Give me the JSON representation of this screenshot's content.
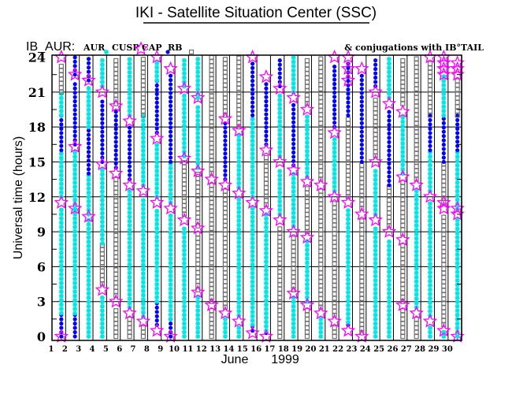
{
  "chart_data": {
    "type": "scatter",
    "title": "IKI - Satellite Situation Center (SSC)",
    "panel_label": "IB_AUR:",
    "legend": [
      {
        "label": "AUR",
        "marker": "asterisk",
        "color": "#00e5e5"
      },
      {
        "label": "CUSP",
        "marker": "star",
        "color": "#ff00ff"
      },
      {
        "label": "CAP",
        "marker": "dot",
        "color": "#0000ff"
      },
      {
        "label": "RB",
        "marker": "square",
        "color": "#707070"
      }
    ],
    "note": "& conjugations with IB°TAIL",
    "ylabel": "Universal time (hours)",
    "xlabel_month": "June",
    "xlabel_year": "1999",
    "ylim": [
      0,
      24
    ],
    "yticks": [
      0,
      3,
      6,
      9,
      12,
      15,
      18,
      21,
      24
    ],
    "xticks": [
      1,
      2,
      3,
      4,
      5,
      6,
      7,
      8,
      9,
      10,
      11,
      12,
      13,
      14,
      15,
      16,
      17,
      18,
      19,
      20,
      21,
      22,
      23,
      24,
      25,
      26,
      27,
      28,
      29,
      30
    ],
    "grid": true,
    "days": [
      {
        "d": 2,
        "seg": [
          [
            0,
            2,
            "cap"
          ],
          [
            2,
            11,
            "aur"
          ],
          [
            12,
            16,
            "aur"
          ],
          [
            16,
            19,
            "cap"
          ],
          [
            19,
            21,
            "aur"
          ],
          [
            21,
            23.5,
            "rb"
          ]
        ],
        "cusp": [
          24,
          11.5,
          0
        ]
      },
      {
        "d": 3,
        "seg": [
          [
            0,
            2,
            "cap"
          ],
          [
            2,
            11,
            "aur"
          ],
          [
            11,
            16,
            "aur"
          ],
          [
            16.5,
            22,
            "cap"
          ],
          [
            22.5,
            24,
            "cap"
          ]
        ],
        "cusp": [
          22.5,
          16.3,
          11
        ]
      },
      {
        "d": 4,
        "seg": [
          [
            0,
            10,
            "aur"
          ],
          [
            10.5,
            14,
            "aur"
          ],
          [
            14,
            18,
            "cap"
          ],
          [
            18,
            21.5,
            "aur"
          ],
          [
            22,
            24,
            "cap"
          ]
        ],
        "cusp": [
          22,
          10.3
        ]
      },
      {
        "d": 5,
        "seg": [
          [
            0,
            3.5,
            "aur"
          ],
          [
            4.5,
            8,
            "rb"
          ],
          [
            8,
            14.5,
            "aur"
          ],
          [
            15,
            20.5,
            "cap"
          ],
          [
            21.5,
            24,
            "aur"
          ]
        ],
        "cusp": [
          21,
          14.8,
          4
        ]
      },
      {
        "d": 6,
        "seg": [
          [
            0,
            2.5,
            "rb"
          ],
          [
            3.5,
            13.5,
            "rb"
          ],
          [
            14.5,
            19.5,
            "cap"
          ],
          [
            20,
            24,
            "rb"
          ]
        ],
        "cusp": [
          19.8,
          14,
          3
        ]
      },
      {
        "d": 7,
        "seg": [
          [
            0,
            1.5,
            "rb"
          ],
          [
            2.5,
            12.5,
            "aur"
          ],
          [
            13.5,
            18,
            "cap"
          ],
          [
            19,
            24,
            "aur"
          ]
        ],
        "cusp": [
          18.5,
          13,
          2
        ]
      },
      {
        "d": 8,
        "seg": [
          [
            0,
            1,
            "rb"
          ],
          [
            1.7,
            12,
            "aur"
          ],
          [
            13,
            19,
            "aur"
          ],
          [
            19,
            24,
            "rb"
          ]
        ],
        "cusp": [
          12.5,
          1.3
        ]
      },
      {
        "d": 9,
        "seg": [
          [
            1,
            3,
            "cap"
          ],
          [
            3,
            11,
            "aur"
          ],
          [
            12,
            16.5,
            "aur"
          ],
          [
            17.5,
            22,
            "cap"
          ],
          [
            22,
            23.5,
            "aur"
          ]
        ],
        "cusp": [
          24,
          17,
          11.5,
          0.5
        ]
      },
      {
        "d": 10,
        "seg": [
          [
            0,
            1.5,
            "cap"
          ],
          [
            1.5,
            10.5,
            "aur"
          ],
          [
            11.5,
            15,
            "aur"
          ],
          [
            15,
            22.5,
            "cap"
          ]
        ],
        "cusp": [
          23,
          11,
          0
        ]
      },
      {
        "d": 11,
        "seg": [
          [
            0,
            9.5,
            "aur"
          ],
          [
            10.5,
            15,
            "rb"
          ],
          [
            15.5,
            21,
            "aur"
          ],
          [
            21.5,
            24,
            "aur"
          ]
        ],
        "cusp": [
          21.3,
          15.3,
          10
        ]
      },
      {
        "d": 12,
        "seg": [
          [
            0,
            3.5,
            "aur"
          ],
          [
            4,
            9,
            "rb"
          ],
          [
            9.5,
            14,
            "rb"
          ],
          [
            14.5,
            20,
            "aur"
          ],
          [
            20.5,
            24,
            "aur"
          ]
        ],
        "cusp": [
          20.5,
          14.2,
          9.3,
          3.8
        ]
      },
      {
        "d": 13,
        "seg": [
          [
            0,
            2.5,
            "rb"
          ],
          [
            3,
            13,
            "rb"
          ],
          [
            14,
            24,
            "rb"
          ]
        ],
        "cusp": [
          13.5,
          2.7
        ]
      },
      {
        "d": 14,
        "seg": [
          [
            0,
            1.5,
            "aur"
          ],
          [
            2.5,
            12.5,
            "rb"
          ],
          [
            13.5,
            18.5,
            "cap"
          ],
          [
            19,
            24,
            "rb"
          ]
        ],
        "cusp": [
          18.7,
          13,
          2
        ]
      },
      {
        "d": 15,
        "seg": [
          [
            0,
            1,
            "aur"
          ],
          [
            1.8,
            12,
            "aur"
          ],
          [
            12.8,
            17.5,
            "aur"
          ],
          [
            18,
            24,
            "rb"
          ]
        ],
        "cusp": [
          17.7,
          12.3,
          1.3
        ]
      },
      {
        "d": 16,
        "seg": [
          [
            0.5,
            1,
            "cap"
          ],
          [
            1,
            11,
            "aur"
          ],
          [
            12,
            19,
            "aur"
          ],
          [
            19,
            23.5,
            "cap"
          ]
        ],
        "cusp": [
          24,
          11.5,
          0.3
        ]
      },
      {
        "d": 17,
        "seg": [
          [
            0.3,
            0.5,
            "cap"
          ],
          [
            0.5,
            10.5,
            "aur"
          ],
          [
            11.3,
            15.5,
            "rb"
          ],
          [
            16.5,
            22,
            "cap"
          ]
        ],
        "cusp": [
          22.3,
          16,
          10.8,
          0
        ]
      },
      {
        "d": 18,
        "seg": [
          [
            0,
            9.5,
            "rb"
          ],
          [
            10.5,
            14.5,
            "aur"
          ],
          [
            15.5,
            21,
            "aur"
          ],
          [
            21.5,
            24,
            "cap"
          ]
        ],
        "cusp": [
          21.3,
          15,
          10
        ]
      },
      {
        "d": 19,
        "seg": [
          [
            0,
            3.5,
            "aur"
          ],
          [
            4,
            8.7,
            "rb"
          ],
          [
            9.5,
            14,
            "aur"
          ],
          [
            14.7,
            20,
            "cap"
          ],
          [
            21,
            24,
            "aur"
          ]
        ],
        "cusp": [
          20.5,
          14.3,
          9,
          3.7
        ]
      },
      {
        "d": 20,
        "seg": [
          [
            0,
            2.5,
            "rb"
          ],
          [
            3,
            8.3,
            "aur"
          ],
          [
            9,
            13,
            "rb"
          ],
          [
            13.7,
            19,
            "aur"
          ],
          [
            20,
            24,
            "rb"
          ]
        ],
        "cusp": [
          19.5,
          13.3,
          8.5,
          2.7
        ]
      },
      {
        "d": 21,
        "seg": [
          [
            0,
            1.5,
            "aur"
          ],
          [
            2.5,
            12.5,
            "rb"
          ],
          [
            13.5,
            24,
            "rb"
          ]
        ],
        "cusp": [
          13,
          2
        ]
      },
      {
        "d": 22,
        "seg": [
          [
            0,
            1,
            "rb"
          ],
          [
            1.8,
            11.5,
            "rb"
          ],
          [
            12.5,
            17,
            "aur"
          ],
          [
            18,
            23.5,
            "cap"
          ]
        ],
        "cusp": [
          24,
          17.5,
          12,
          1.3
        ]
      },
      {
        "d": 23,
        "seg": [
          [
            1,
            1.2,
            "cap"
          ],
          [
            1.2,
            11,
            "aur"
          ],
          [
            12,
            19,
            "rb"
          ],
          [
            19,
            23.5,
            "cap"
          ]
        ],
        "cusp": [
          24,
          23,
          22,
          11.5,
          0.5
        ]
      },
      {
        "d": 24,
        "seg": [
          [
            0.3,
            10,
            "rb"
          ],
          [
            11,
            15,
            "rb"
          ],
          [
            15,
            22.5,
            "cap"
          ]
        ],
        "cusp": [
          23,
          10.5,
          0
        ]
      },
      {
        "d": 25,
        "seg": [
          [
            0,
            9.5,
            "aur"
          ],
          [
            10.5,
            14.5,
            "aur"
          ],
          [
            15.5,
            20.5,
            "rb"
          ],
          [
            21.5,
            24,
            "cap"
          ]
        ],
        "cusp": [
          21,
          15,
          10
        ]
      },
      {
        "d": 26,
        "seg": [
          [
            0,
            8.5,
            "aur"
          ],
          [
            9.5,
            13,
            "rb"
          ],
          [
            13,
            19.5,
            "cap"
          ],
          [
            20.5,
            24,
            "aur"
          ]
        ],
        "cusp": [
          20,
          9
        ]
      },
      {
        "d": 27,
        "seg": [
          [
            0,
            2.3,
            "rb"
          ],
          [
            3,
            8,
            "rb"
          ],
          [
            8.8,
            13.3,
            "rb"
          ],
          [
            14,
            19,
            "aur"
          ],
          [
            20,
            24,
            "rb"
          ]
        ],
        "cusp": [
          19.3,
          13.7,
          8.3,
          2.7
        ]
      },
      {
        "d": 28,
        "seg": [
          [
            0,
            1.5,
            "rb"
          ],
          [
            2.5,
            12.5,
            "aur"
          ],
          [
            13.5,
            24,
            "rb"
          ]
        ],
        "cusp": [
          13,
          2
        ]
      },
      {
        "d": 29,
        "seg": [
          [
            0,
            1,
            "aur"
          ],
          [
            1.8,
            11.5,
            "aur"
          ],
          [
            12.5,
            16,
            "aur"
          ],
          [
            16,
            19,
            "cap"
          ],
          [
            19,
            23.5,
            "rb"
          ]
        ],
        "cusp": [
          24,
          12,
          1.3
        ]
      },
      {
        "d": 30,
        "seg": [
          [
            0,
            0.5,
            "aur"
          ],
          [
            1,
            10.5,
            "rb"
          ],
          [
            11.5,
            15,
            "rb"
          ],
          [
            15,
            19,
            "cap"
          ],
          [
            19,
            22.5,
            "aur"
          ]
        ],
        "cusp": [
          24,
          23.5,
          23,
          22.5,
          11.5,
          11,
          0.5
        ]
      },
      {
        "d": 31,
        "seg": [
          [
            0,
            10,
            "aur"
          ],
          [
            11,
            16,
            "aur"
          ],
          [
            16,
            19,
            "cap"
          ],
          [
            19,
            22,
            "rb"
          ]
        ],
        "cusp": [
          23.5,
          23,
          22.5,
          11,
          10.5,
          0
        ]
      }
    ]
  }
}
